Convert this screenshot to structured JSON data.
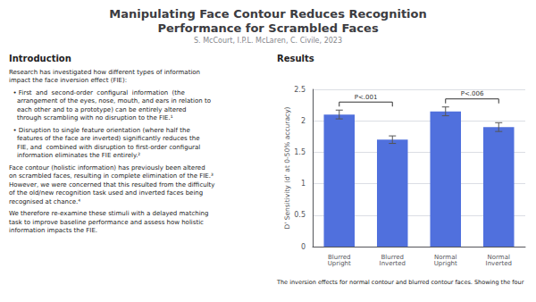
{
  "chart_data": {
    "type": "bar",
    "title": "Manipulating Face Contour Reduces Recognition\nPerformance for Scrambled Faces",
    "subtitle": "S. McCourt, I.P.L. McLaren, C. Civile, 2023",
    "categories": [
      "Blurred Upright",
      "Blurred Inverted",
      "Normal Upright",
      "Normal Inverted"
    ],
    "values": [
      2.1,
      1.7,
      2.15,
      1.9
    ],
    "errors": [
      0.07,
      0.06,
      0.07,
      0.07
    ],
    "ylabel": "D' Sensitivity (d' at 0-50% accuracy)",
    "ylim": [
      0,
      2.5
    ],
    "yticks": [
      0,
      0.5,
      1,
      1.5,
      2,
      2.5
    ],
    "grid": true,
    "annotations": [
      {
        "heading": "Introduction",
        "texts": [
          "Research has investigated how different types of information\nimpact the face inversion effect (FIE):",
          "  • First  and  second-order  configural  information  (the\n    arrangement of the eyes, nose, mouth, and ears in relation to\n    each other and to a prototype) can be entirely altered\n    through scrambling with no disruption to the FIE.¹",
          "  • Disruption to single feature orientation (where half the\n    features of the face are inverted) significantly reduces the\n    FIE, and  combined with disruption to first-order configural\n    information eliminates the FIE entirely.²",
          "Face contour (holistic information) has previously been altered\non scrambled faces, resulting in complete elimination of the FIE.³\nHowever, we were concerned that this resulted from the difficulty\nof the old/new recognition task used and inverted faces being\nrecognised at chance.⁴",
          "We therefore re-examine these stimuli with a delayed matching\ntask to improve baseline performance and assess how holistic\ninformation impacts the FIE."
        ]
      },
      {
        "heading": "Results",
        "texts": [
          "The inversion effects for normal contour and blurred contour faces. Showing the four"
        ]
      },
      {
        "text": "P<.001",
        "from": "Blurred Upright",
        "to": "Blurred Inverted"
      },
      {
        "text": "P<.006",
        "from": "Normal Upright",
        "to": "Normal Inverted"
      }
    ]
  }
}
